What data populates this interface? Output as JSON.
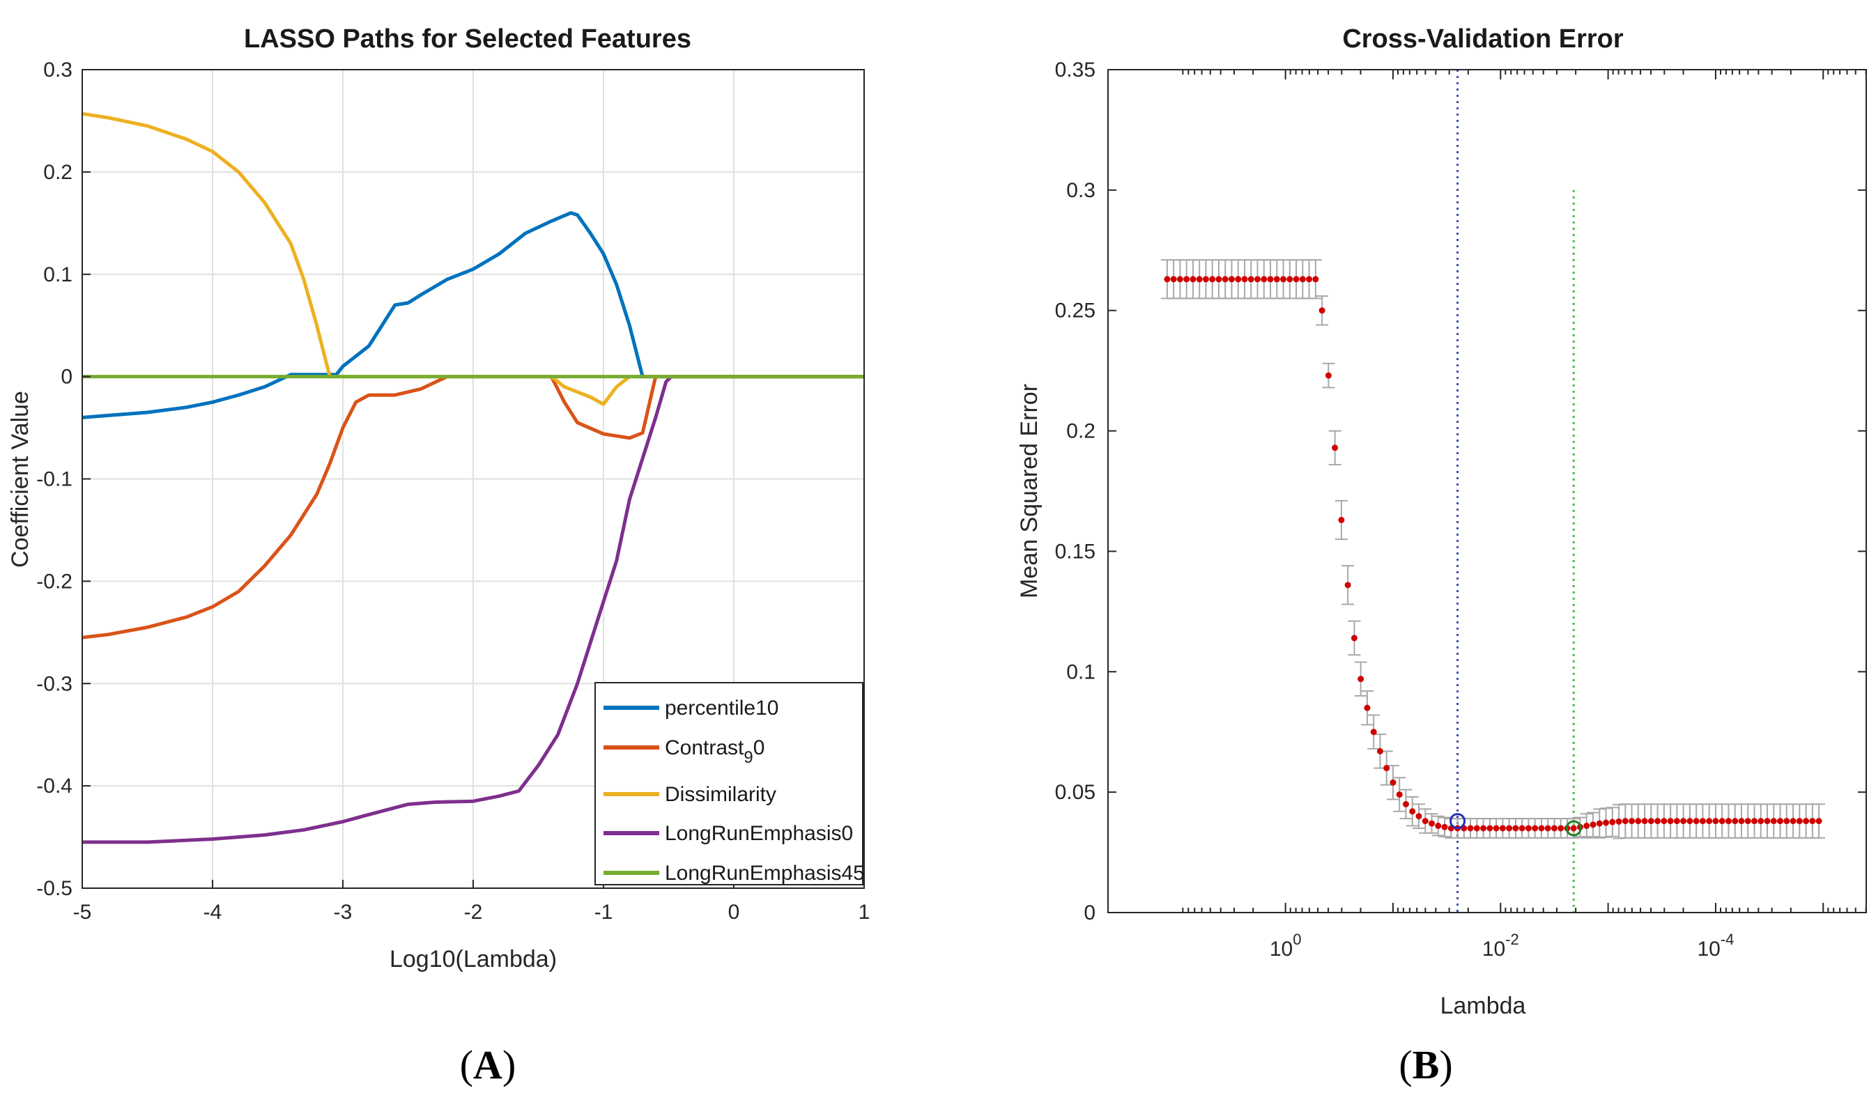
{
  "chart_data": [
    {
      "type": "line",
      "title": "LASSO Paths for Selected Features",
      "xlabel": "Log10(Lambda)",
      "ylabel": "Coefficient Value",
      "xlim": [
        -5,
        1
      ],
      "ylim": [
        -0.5,
        0.3
      ],
      "xticks": [
        -5,
        -4,
        -3,
        -2,
        -1,
        0,
        1
      ],
      "xtick_labels": [
        "-5",
        "-4",
        "-3",
        "-2",
        "-1",
        "0",
        "1"
      ],
      "yticks": [
        -0.5,
        -0.4,
        -0.3,
        -0.2,
        -0.1,
        0,
        0.1,
        0.2,
        0.3
      ],
      "ytick_labels": [
        "-0.5",
        "-0.4",
        "-0.3",
        "-0.2",
        "-0.1",
        "0",
        "0.1",
        "0.2",
        "0.3"
      ],
      "grid": true,
      "legend_position": "bottom-right",
      "series": [
        {
          "name": "percentile10",
          "color": "#0072bd",
          "x": [
            -5,
            -4.8,
            -4.5,
            -4.2,
            -4,
            -3.8,
            -3.6,
            -3.4,
            -3.2,
            -3.05,
            -3,
            -2.9,
            -2.8,
            -2.6,
            -2.5,
            -2.4,
            -2.2,
            -2,
            -1.8,
            -1.6,
            -1.4,
            -1.25,
            -1.2,
            -1.1,
            -1,
            -0.9,
            -0.8,
            -0.7,
            -0.6,
            1
          ],
          "y": [
            -0.04,
            -0.038,
            -0.035,
            -0.03,
            -0.025,
            -0.018,
            -0.01,
            0.002,
            0.002,
            0.002,
            0.01,
            0.02,
            0.03,
            0.07,
            0.072,
            0.08,
            0.095,
            0.105,
            0.12,
            0.14,
            0.152,
            0.16,
            0.158,
            0.14,
            0.12,
            0.09,
            0.05,
            0,
            0,
            0
          ]
        },
        {
          "name": "Contrast_90",
          "color": "#d95319",
          "x": [
            -5,
            -4.8,
            -4.5,
            -4.2,
            -4,
            -3.8,
            -3.6,
            -3.4,
            -3.2,
            -3.1,
            -3,
            -2.9,
            -2.8,
            -2.6,
            -2.4,
            -2.2,
            -2,
            -1.6,
            -1.5,
            -1.4,
            -1.3,
            -1.2,
            -1,
            -0.9,
            -0.8,
            -0.7,
            -0.6,
            1
          ],
          "y": [
            -0.255,
            -0.252,
            -0.245,
            -0.235,
            -0.225,
            -0.21,
            -0.185,
            -0.155,
            -0.115,
            -0.085,
            -0.05,
            -0.025,
            -0.018,
            -0.018,
            -0.012,
            0,
            0,
            0,
            0,
            0,
            -0.025,
            -0.045,
            -0.056,
            -0.058,
            -0.06,
            -0.055,
            0,
            0
          ]
        },
        {
          "name": "Dissimilarity",
          "color": "#edb120",
          "x": [
            -5,
            -4.8,
            -4.5,
            -4.2,
            -4,
            -3.8,
            -3.6,
            -3.4,
            -3.3,
            -3.2,
            -3.1,
            -3,
            -1.4,
            -1.3,
            -1.2,
            -1.1,
            -1.0,
            -0.9,
            -0.8,
            1
          ],
          "y": [
            0.257,
            0.253,
            0.245,
            0.232,
            0.22,
            0.2,
            0.17,
            0.13,
            0.095,
            0.05,
            0,
            0,
            0,
            -0.01,
            -0.015,
            -0.02,
            -0.027,
            -0.01,
            0,
            0
          ]
        },
        {
          "name": "LongRunEmphasis0",
          "color": "#7e2f8e",
          "x": [
            -5,
            -4.5,
            -4,
            -3.6,
            -3.3,
            -3,
            -2.8,
            -2.5,
            -2.3,
            -2,
            -1.8,
            -1.65,
            -1.5,
            -1.35,
            -1.2,
            -1.05,
            -0.9,
            -0.8,
            -0.7,
            -0.6,
            -0.52,
            -0.48,
            1
          ],
          "y": [
            -0.455,
            -0.455,
            -0.452,
            -0.448,
            -0.443,
            -0.435,
            -0.428,
            -0.418,
            -0.416,
            -0.415,
            -0.41,
            -0.405,
            -0.38,
            -0.35,
            -0.3,
            -0.24,
            -0.18,
            -0.12,
            -0.08,
            -0.04,
            -0.005,
            0,
            0
          ]
        },
        {
          "name": "LongRunEmphasis45",
          "color": "#77ac30",
          "x": [
            -5,
            1
          ],
          "y": [
            0,
            0
          ]
        }
      ]
    },
    {
      "type": "scatter",
      "title": "Cross-Validation Error",
      "xlabel": "Lambda",
      "ylabel": "Mean Squared Error",
      "xscale": "log",
      "xaxis_reversed": true,
      "ylim": [
        0,
        0.35
      ],
      "yticks": [
        0,
        0.05,
        0.1,
        0.15,
        0.2,
        0.25,
        0.3,
        0.35
      ],
      "ytick_labels": [
        "0",
        "0.05",
        "0.1",
        "0.15",
        "0.2",
        "0.25",
        "0.3",
        "0.35"
      ],
      "xtick_labels": [
        {
          "base": "10",
          "exp": "0"
        },
        {
          "base": "10",
          "exp": "-2"
        },
        {
          "base": "10",
          "exp": "-4"
        }
      ],
      "grid": false,
      "error_bars": true,
      "lambda_min_log10": -2.68,
      "lambda_1se_log10": -1.6,
      "marker_color": "#d00000",
      "errorbar_color": "#a8a8a8",
      "series": [
        {
          "name": "MSE",
          "log10_lambda": [
            1.1,
            1.04,
            0.98,
            0.92,
            0.86,
            0.8,
            0.74,
            0.68,
            0.62,
            0.56,
            0.5,
            0.44,
            0.38,
            0.32,
            0.26,
            0.2,
            0.14,
            0.08,
            0.02,
            -0.04,
            -0.1,
            -0.16,
            -0.22,
            -0.28,
            -0.34,
            -0.4,
            -0.46,
            -0.52,
            -0.58,
            -0.64,
            -0.7,
            -0.76,
            -0.82,
            -0.88,
            -0.94,
            -1.0,
            -1.06,
            -1.12,
            -1.18,
            -1.24,
            -1.3,
            -1.36,
            -1.42,
            -1.48,
            -1.54,
            -1.6,
            -1.66,
            -1.72,
            -1.78,
            -1.84,
            -1.9,
            -1.96,
            -2.02,
            -2.08,
            -2.14,
            -2.2,
            -2.26,
            -2.32,
            -2.38,
            -2.44,
            -2.5,
            -2.56,
            -2.62,
            -2.68,
            -2.74,
            -2.8,
            -2.86,
            -2.92,
            -2.98,
            -3.04,
            -3.1,
            -3.16,
            -3.22,
            -3.28,
            -3.34,
            -3.4,
            -3.46,
            -3.52,
            -3.58,
            -3.64,
            -3.7,
            -3.76,
            -3.82,
            -3.88,
            -3.94,
            -4.0,
            -4.06,
            -4.12,
            -4.18,
            -4.24,
            -4.3,
            -4.36,
            -4.42,
            -4.48,
            -4.54,
            -4.6,
            -4.66,
            -4.72,
            -4.78,
            -4.84,
            -4.9,
            -4.96
          ],
          "mse": [
            0.263,
            0.263,
            0.263,
            0.263,
            0.263,
            0.263,
            0.263,
            0.263,
            0.263,
            0.263,
            0.263,
            0.263,
            0.263,
            0.263,
            0.263,
            0.263,
            0.263,
            0.263,
            0.263,
            0.263,
            0.263,
            0.263,
            0.263,
            0.263,
            0.25,
            0.223,
            0.193,
            0.163,
            0.136,
            0.114,
            0.097,
            0.085,
            0.075,
            0.067,
            0.06,
            0.054,
            0.049,
            0.045,
            0.042,
            0.04,
            0.038,
            0.037,
            0.036,
            0.0355,
            0.035,
            0.035,
            0.035,
            0.035,
            0.035,
            0.035,
            0.035,
            0.035,
            0.035,
            0.035,
            0.035,
            0.035,
            0.035,
            0.035,
            0.035,
            0.035,
            0.035,
            0.035,
            0.035,
            0.035,
            0.0355,
            0.036,
            0.0365,
            0.037,
            0.0373,
            0.0376,
            0.0378,
            0.038,
            0.038,
            0.038,
            0.038,
            0.038,
            0.038,
            0.038,
            0.038,
            0.038,
            0.038,
            0.038,
            0.038,
            0.038,
            0.038,
            0.038,
            0.038,
            0.038,
            0.038,
            0.038,
            0.038,
            0.038,
            0.038,
            0.038,
            0.038,
            0.038,
            0.038,
            0.038,
            0.038,
            0.038,
            0.038,
            0.038
          ],
          "se": [
            0.008,
            0.008,
            0.008,
            0.008,
            0.008,
            0.008,
            0.008,
            0.008,
            0.008,
            0.008,
            0.008,
            0.008,
            0.008,
            0.008,
            0.008,
            0.008,
            0.008,
            0.008,
            0.008,
            0.008,
            0.008,
            0.008,
            0.008,
            0.008,
            0.006,
            0.005,
            0.007,
            0.008,
            0.008,
            0.007,
            0.007,
            0.007,
            0.007,
            0.007,
            0.007,
            0.007,
            0.007,
            0.006,
            0.006,
            0.005,
            0.005,
            0.004,
            0.004,
            0.004,
            0.004,
            0.004,
            0.004,
            0.004,
            0.004,
            0.004,
            0.004,
            0.004,
            0.004,
            0.004,
            0.004,
            0.004,
            0.004,
            0.004,
            0.004,
            0.004,
            0.004,
            0.004,
            0.004,
            0.004,
            0.004,
            0.005,
            0.005,
            0.006,
            0.006,
            0.006,
            0.007,
            0.007,
            0.007,
            0.007,
            0.007,
            0.007,
            0.007,
            0.007,
            0.007,
            0.007,
            0.007,
            0.007,
            0.007,
            0.007,
            0.007,
            0.007,
            0.007,
            0.007,
            0.007,
            0.007,
            0.007,
            0.007,
            0.007,
            0.007,
            0.007,
            0.007,
            0.007,
            0.007,
            0.007,
            0.007,
            0.007,
            0.007
          ]
        }
      ]
    }
  ],
  "panels": {
    "a_label": "A",
    "b_label": "B",
    "open_paren": "(",
    "close_paren": ")"
  }
}
